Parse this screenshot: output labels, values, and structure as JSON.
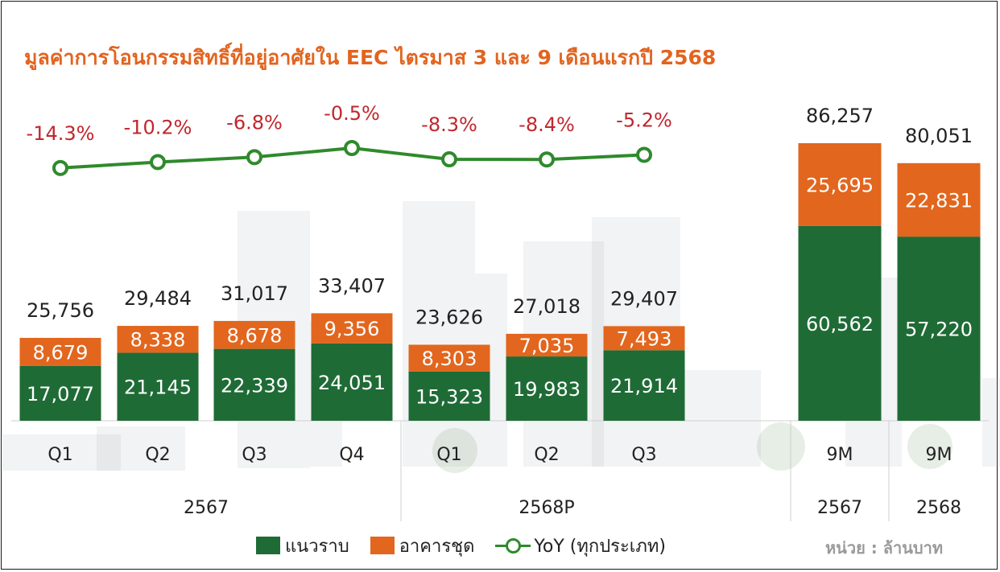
{
  "title": "มูลค่าการโอนกรรมสิทธิ์ที่อยู่อาศัยใน EEC ไตรมาส 3 และ 9 เดือนแรกปี 2568",
  "unit_note": "หน่วย : ล้านบาท",
  "colors": {
    "low_rise": "#1f6b36",
    "condo": "#e2661e",
    "yoy": "#2f8a2c",
    "yoy_label": "#c0272d",
    "title": "#e2641f",
    "label_on_bar": "#ffffff",
    "total_label": "#222222"
  },
  "legend": [
    {
      "key": "low_rise",
      "label": "แนวราบ"
    },
    {
      "key": "condo",
      "label": "อาคารชุด"
    },
    {
      "key": "yoy",
      "label": "YoY (ทุกประเภท)"
    }
  ],
  "chart_data": {
    "type": "bar",
    "stacked": true,
    "categories": [
      "Q1",
      "Q2",
      "Q3",
      "Q4",
      "Q1",
      "Q2",
      "Q3",
      "9M",
      "9M"
    ],
    "groups": [
      {
        "label": "2567",
        "categories": [
          "Q1",
          "Q2",
          "Q3",
          "Q4"
        ]
      },
      {
        "label": "2568P",
        "categories": [
          "Q1",
          "Q2",
          "Q3"
        ]
      },
      {
        "label": "2567",
        "categories": [
          "9M"
        ]
      },
      {
        "label": "2568",
        "categories": [
          "9M"
        ]
      }
    ],
    "series": [
      {
        "name": "แนวราบ",
        "values": [
          17077,
          21145,
          22339,
          24051,
          15323,
          19983,
          21914,
          60562,
          57220
        ]
      },
      {
        "name": "อาคารชุด",
        "values": [
          8679,
          8338,
          8678,
          9356,
          8303,
          7035,
          7493,
          25695,
          22831
        ]
      }
    ],
    "totals": [
      "25,756",
      "29,484",
      "31,017",
      "33,407",
      "23,626",
      "27,018",
      "29,407",
      "86,257",
      "80,051"
    ],
    "yoy": {
      "name": "YoY (ทุกประเภท)",
      "values": [
        -14.3,
        -10.2,
        -6.8,
        -0.5,
        -8.3,
        -8.4,
        -5.2
      ],
      "labels": [
        "-14.3%",
        "-10.2%",
        "-6.8%",
        "-0.5%",
        "-8.3%",
        "-8.4%",
        "-5.2%"
      ]
    }
  }
}
